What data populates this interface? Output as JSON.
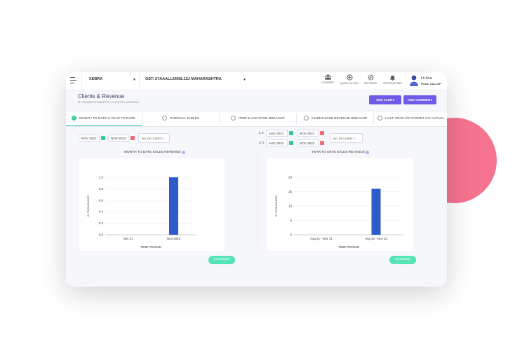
{
  "topbar": {
    "company": "XEBRA",
    "gst": "GST: 27AAALL6666L1ZJ MAHARASHTRA",
    "items": [
      {
        "label": "COHORTS",
        "icon": "cohorts-icon"
      },
      {
        "label": "QUICK ACTION",
        "icon": "quick-action-icon"
      },
      {
        "label": "SETTINGS",
        "icon": "gear-icon"
      },
      {
        "label": "NOTIFICATIONS",
        "icon": "bell-icon"
      }
    ],
    "user": {
      "greeting": "Hi Ava",
      "plan": "PLAN: GALLOP"
    }
  },
  "header": {
    "title": "Clients & Revenue",
    "breadcrumb": "MY BUSINESS INSIGHTS / CLIENTS & REVENUE",
    "add_alert": "ADD ALERT",
    "add_comment": "ADD COMMENT"
  },
  "tabs": [
    {
      "label": "MONTH TO DATE & YEAR TO DATE",
      "active": true
    },
    {
      "label": "INTERVAL TABLES"
    },
    {
      "label": "ITEM & LOCATION BREAKUP"
    },
    {
      "label": "CLIENT-WISE REVENUE BREAKUP"
    },
    {
      "label": "LAST YEAR V/S TARGET V/S ACTUAL"
    }
  ],
  "filters_left": {
    "from": "NOV 2021",
    "to": "NOV 2022",
    "dropdown": "NO. OF CLIENT"
  },
  "filters_right": {
    "ly_label": "L.Y.",
    "ly_from": "AUG 2021",
    "ly_to": "NOV 2021",
    "cy_label": "C.Y.",
    "cy_from": "AUG 2022",
    "cy_to": "NOV 2022",
    "dropdown": "NO. OF CLIENT"
  },
  "download_label": "Download",
  "colors": {
    "bar": "#2d5bc9",
    "accent": "#6c5ce7",
    "green": "#35c8a0"
  },
  "chart_data": [
    {
      "type": "bar",
      "title": "MONTH TO DATE SALES REVENUE",
      "xlabel": "TIME PERIOD",
      "ylabel": "IN THOUSANDS",
      "categories": [
        "Nov 21",
        "Nov-2022"
      ],
      "values": [
        0,
        1.0
      ],
      "yticks": [
        "0.0",
        "0.2",
        "0.4",
        "0.6",
        "0.8",
        "1.0"
      ],
      "ylim": [
        0,
        1.0
      ]
    },
    {
      "type": "bar",
      "title": "YEAR TO DATE SALES REVENUE",
      "xlabel": "TIME PERIOD",
      "ylabel": "IN THOUSANDS",
      "categories": [
        "Aug 21 - Nov 21",
        "Aug 22 - Nov 22"
      ],
      "values": [
        0,
        16
      ],
      "yticks": [
        "0",
        "5",
        "10",
        "15",
        "20"
      ],
      "ylim": [
        0,
        20
      ]
    }
  ]
}
